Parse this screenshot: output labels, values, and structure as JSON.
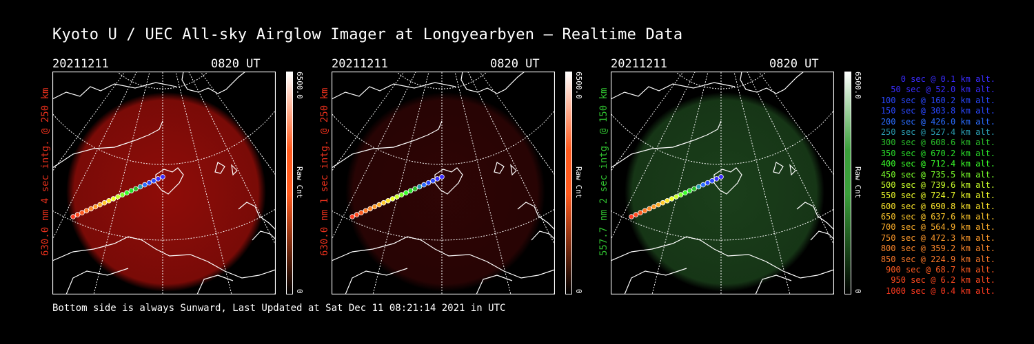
{
  "title": "Kyoto U / UEC All-sky Airglow Imager at Longyearbyen — Realtime Data",
  "footer": "Bottom side is always Sunward, Last Updated at Sat Dec 11 08:21:14 2021 in UTC",
  "panels": [
    {
      "date": "20211211",
      "time": "0820 UT",
      "side_label": "630.0 nm 4 sec intg. @ 250 km",
      "label_color": "#e8301c",
      "glow": "#a80f0a",
      "glow_opacity": 0.85,
      "cb_max": "6500.0",
      "cb_min": "0",
      "cb_label": "Raw Cnt",
      "cb_color": "#ff5a1e"
    },
    {
      "date": "20211211",
      "time": "0820 UT",
      "side_label": "630.0 nm 1 sec intg. @ 250 km",
      "label_color": "#e8301c",
      "glow": "#3a0606",
      "glow_opacity": 0.8,
      "cb_max": "6500.0",
      "cb_min": "0",
      "cb_label": "Raw Cnt",
      "cb_color": "#ff5a1e"
    },
    {
      "date": "20211211",
      "time": "0820 UT",
      "side_label": "557.7 nm 2 sec intg. @ 150 km",
      "label_color": "#2fbf2f",
      "glow": "#1f4a1f",
      "glow_opacity": 0.85,
      "cb_max": "6500.0",
      "cb_min": "0",
      "cb_label": "Raw Cnt",
      "cb_color": "#3aa03a"
    }
  ],
  "legend": [
    {
      "text": "0 sec @   0.1 km alt.",
      "color": "#3a2cff"
    },
    {
      "text": "50 sec @  52.0 km alt.",
      "color": "#3a2cff"
    },
    {
      "text": "100 sec @ 160.2 km alt.",
      "color": "#2a48ff"
    },
    {
      "text": "150 sec @ 303.8 km alt.",
      "color": "#2a48ff"
    },
    {
      "text": "200 sec @ 426.0 km alt.",
      "color": "#2a6cff"
    },
    {
      "text": "250 sec @ 527.4 km alt.",
      "color": "#2a9cb0"
    },
    {
      "text": "300 sec @ 608.6 km alt.",
      "color": "#2ac02a"
    },
    {
      "text": "350 sec @ 670.2 km alt.",
      "color": "#2ae02a"
    },
    {
      "text": "400 sec @ 712.4 km alt.",
      "color": "#3aff2a"
    },
    {
      "text": "450 sec @ 735.5 km alt.",
      "color": "#7aff2a"
    },
    {
      "text": "500 sec @ 739.6 km alt.",
      "color": "#c8ff2a"
    },
    {
      "text": "550 sec @ 724.7 km alt.",
      "color": "#f0ff2a"
    },
    {
      "text": "600 sec @ 690.8 km alt.",
      "color": "#ffe82a"
    },
    {
      "text": "650 sec @ 637.6 km alt.",
      "color": "#ffc82a"
    },
    {
      "text": "700 sec @ 564.9 km alt.",
      "color": "#ffb02a"
    },
    {
      "text": "750 sec @ 472.3 km alt.",
      "color": "#ff9a2a"
    },
    {
      "text": "800 sec @ 359.2 km alt.",
      "color": "#ff882a"
    },
    {
      "text": "850 sec @ 224.9 km alt.",
      "color": "#ff7a2a"
    },
    {
      "text": "900 sec @  68.7 km alt.",
      "color": "#ff5a20"
    },
    {
      "text": "950 sec @   6.2 km alt.",
      "color": "#ff4a20"
    },
    {
      "text": "1000 sec @   0.4 km alt.",
      "color": "#ff3a20"
    }
  ]
}
